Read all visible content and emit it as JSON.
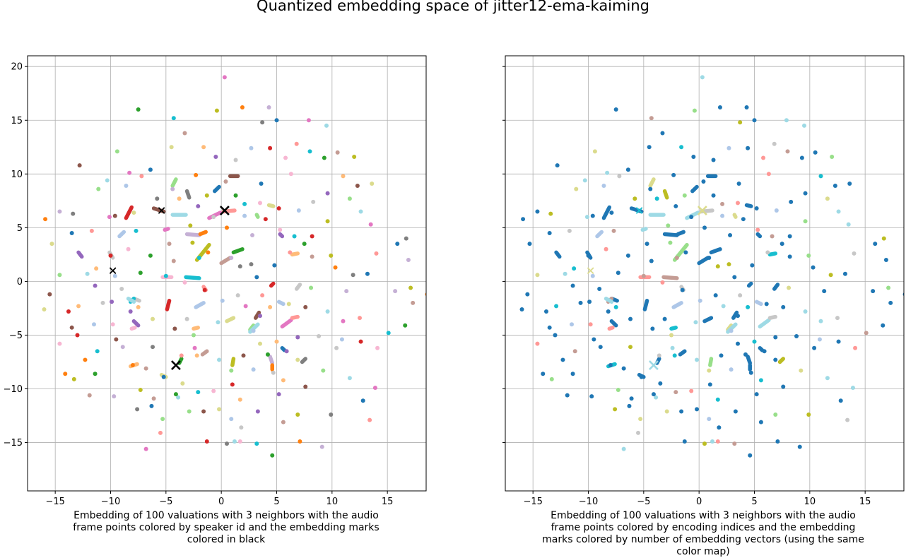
{
  "figure": {
    "title": "Quantized embedding space of jitter12-ema-kaiming"
  },
  "chart_data": [
    {
      "type": "scatter",
      "panel": "left",
      "title": "",
      "xlabel": "Embedding of 100 valuations with 3 neighbors with the audio\nframe points colored by speaker id and the embedding marks\ncolored in black",
      "ylabel": "",
      "xlim": [
        -17.5,
        18.5
      ],
      "ylim": [
        -19.5,
        21
      ],
      "xticks": [
        -15,
        -10,
        -5,
        0,
        5,
        10,
        15
      ],
      "yticks": [
        -15,
        -10,
        -5,
        0,
        5,
        10,
        15,
        20
      ],
      "grid": true,
      "points": [
        [
          -9.5,
          -5.4
        ],
        [
          -3.5,
          -9.5
        ],
        [
          -2.2,
          -6.9
        ],
        [
          5.9,
          -6.5
        ],
        [
          10.4,
          -6.2
        ],
        [
          -8.6,
          8.9
        ],
        [
          -13,
          -5
        ],
        [
          -14.6,
          -5.8
        ],
        [
          -4.3,
          15.2
        ],
        [
          -7.5,
          16
        ],
        [
          -3.3,
          13.8
        ],
        [
          -0.4,
          15.9
        ],
        [
          1.9,
          16.2
        ],
        [
          4.3,
          16.2
        ],
        [
          3.7,
          14.8
        ],
        [
          5,
          15
        ],
        [
          6.8,
          12.8
        ],
        [
          7.9,
          15
        ],
        [
          9.5,
          14.5
        ],
        [
          -9.4,
          12.1
        ],
        [
          -12.8,
          10.8
        ],
        [
          -4.5,
          12.5
        ],
        [
          -1.6,
          12.5
        ],
        [
          -0.5,
          11.6
        ],
        [
          1.3,
          11.3
        ],
        [
          2.7,
          12.4
        ],
        [
          4.4,
          12.4
        ],
        [
          5.8,
          11.5
        ],
        [
          8,
          12.1
        ],
        [
          9.3,
          11.5
        ],
        [
          10.5,
          12
        ],
        [
          12,
          11.6
        ],
        [
          -15.9,
          5.8
        ],
        [
          -14.6,
          6.5
        ],
        [
          -13.4,
          6.3
        ],
        [
          -13.5,
          4.5
        ],
        [
          -11.7,
          4.7
        ],
        [
          -10.1,
          6
        ],
        [
          -12.1,
          0.7
        ],
        [
          -14.6,
          0.6
        ],
        [
          -15.5,
          -1.2
        ],
        [
          -16,
          -2.6
        ],
        [
          -12.9,
          -2.3
        ],
        [
          -11.4,
          -0.4
        ],
        [
          -10.7,
          -2
        ],
        [
          -11.5,
          -4
        ],
        [
          -13.8,
          -2.8
        ],
        [
          -9.8,
          -4
        ],
        [
          -11.2,
          -6.5
        ],
        [
          -11.4,
          -8.6
        ],
        [
          -11.9,
          -10.6
        ],
        [
          -13.3,
          -9.1
        ],
        [
          -14.1,
          -8.6
        ],
        [
          -9.7,
          -10.7
        ],
        [
          -7.6,
          -11.9
        ],
        [
          -6.3,
          -11.6
        ],
        [
          -5.5,
          -14.1
        ],
        [
          -6.8,
          -15.6
        ],
        [
          -3.9,
          -10.8
        ],
        [
          -2.9,
          -12.1
        ],
        [
          -1.6,
          -12.1
        ],
        [
          -0.2,
          -11.9
        ],
        [
          1.7,
          -11
        ],
        [
          3.3,
          -12.1
        ],
        [
          1.8,
          -13.6
        ],
        [
          0.9,
          -12.8
        ],
        [
          -1.3,
          -14.9
        ],
        [
          1.7,
          -14.9
        ],
        [
          3.2,
          -15.1
        ],
        [
          4.6,
          -16.2
        ],
        [
          5.6,
          -13.1
        ],
        [
          6.9,
          -12.4
        ],
        [
          7.1,
          -14.9
        ],
        [
          9.1,
          -15.4
        ],
        [
          9.9,
          -12.4
        ],
        [
          12.8,
          -11.1
        ],
        [
          13.4,
          -12.9
        ],
        [
          13.9,
          -9.9
        ],
        [
          11.6,
          -9
        ],
        [
          9.2,
          -8.3
        ],
        [
          7.6,
          -9.8
        ],
        [
          6.9,
          -7.3
        ],
        [
          5.6,
          -9.2
        ],
        [
          5.2,
          -10.5
        ],
        [
          4.7,
          -8.5
        ],
        [
          2.9,
          -8.2
        ],
        [
          1,
          -9.6
        ],
        [
          -0.7,
          -10.2
        ],
        [
          -2.1,
          -10.3
        ],
        [
          -4.1,
          -10.5
        ],
        [
          -6.1,
          -10.9
        ],
        [
          -7.3,
          -10.1
        ],
        [
          -8,
          -7.8
        ],
        [
          -8.9,
          -6.1
        ],
        [
          -6.2,
          -6.1
        ],
        [
          -5.2,
          -8.9
        ],
        [
          -3.6,
          -6.9
        ],
        [
          -2.4,
          -6.2
        ],
        [
          -0.2,
          -7.3
        ],
        [
          0.9,
          -8.3
        ],
        [
          2,
          -6.9
        ],
        [
          3.5,
          -5.8
        ],
        [
          5,
          -5.6
        ],
        [
          6.9,
          -5.2
        ],
        [
          8.8,
          -5.1
        ],
        [
          10.9,
          -5.4
        ],
        [
          12.6,
          -5.6
        ],
        [
          14.1,
          -6.2
        ],
        [
          15.1,
          -4.8
        ],
        [
          16.6,
          -4.1
        ],
        [
          17.3,
          -2
        ],
        [
          17.1,
          -0.6
        ],
        [
          18.6,
          -1.2
        ],
        [
          16.9,
          2
        ],
        [
          16.7,
          4
        ],
        [
          15.9,
          3.5
        ],
        [
          14,
          2.6
        ],
        [
          13.5,
          5.3
        ],
        [
          12.6,
          6.5
        ],
        [
          11.6,
          7.7
        ],
        [
          12.3,
          8.9
        ],
        [
          13.6,
          9.1
        ],
        [
          11,
          9.8
        ],
        [
          9.6,
          8.2
        ],
        [
          8.3,
          7.4
        ],
        [
          7,
          6.6
        ],
        [
          5.2,
          6.8
        ],
        [
          3.5,
          7.3
        ],
        [
          2.1,
          7.2
        ],
        [
          1.3,
          8
        ],
        [
          0.4,
          9.3
        ],
        [
          -1.3,
          8
        ],
        [
          -2.3,
          9.9
        ],
        [
          -4.4,
          8.6
        ],
        [
          -5.8,
          7.7
        ],
        [
          -6.4,
          10.4
        ],
        [
          -7.2,
          9.8
        ],
        [
          -8.3,
          10.1
        ],
        [
          -10.3,
          9.4
        ],
        [
          -11.1,
          8.6
        ],
        [
          -9.6,
          6.1
        ],
        [
          -7.9,
          6.4
        ],
        [
          -3.8,
          7.7
        ],
        [
          -2.1,
          7
        ],
        [
          -0.7,
          6
        ],
        [
          2.1,
          6.1
        ],
        [
          4,
          5.8
        ],
        [
          5.3,
          4.8
        ],
        [
          6.6,
          4.2
        ],
        [
          7.5,
          3.5
        ],
        [
          8.2,
          2.3
        ],
        [
          9.9,
          2.4
        ],
        [
          10.3,
          1.3
        ],
        [
          11.3,
          -0.9
        ],
        [
          11.9,
          0.6
        ],
        [
          13.2,
          0.7
        ],
        [
          12.5,
          -3.4
        ],
        [
          11,
          -3.7
        ],
        [
          9.6,
          -2.8
        ],
        [
          8.1,
          -0.6
        ],
        [
          7.6,
          -2.4
        ],
        [
          6.1,
          -2.1
        ],
        [
          4.4,
          -2.4
        ],
        [
          3.5,
          -3.2
        ],
        [
          1.5,
          -1.3
        ],
        [
          0.1,
          -1.8
        ],
        [
          -1.5,
          -0.8
        ],
        [
          -3.3,
          -0.1
        ],
        [
          -5,
          0.5
        ],
        [
          -6.4,
          2.4
        ],
        [
          -4.7,
          3.5
        ],
        [
          -2.6,
          3.6
        ],
        [
          -1.2,
          2.7
        ],
        [
          0.9,
          2.2
        ],
        [
          1.7,
          1.4
        ],
        [
          3.2,
          0.4
        ],
        [
          3.7,
          -1.3
        ],
        [
          2.2,
          -2.3
        ],
        [
          -0.3,
          -3.8
        ],
        [
          -2.5,
          -5
        ],
        [
          -4.2,
          -4.4
        ],
        [
          -6.2,
          -3.5
        ],
        [
          -7.5,
          -2.4
        ],
        [
          -9.9,
          -1.9
        ],
        [
          -9,
          -0.7
        ],
        [
          -9.6,
          0.5
        ],
        [
          -10,
          2.4
        ],
        [
          -8.4,
          3
        ],
        [
          -7.7,
          4.7
        ],
        [
          -7.3,
          0.8
        ],
        [
          -4.3,
          1.9
        ],
        [
          -2.8,
          5.2
        ],
        [
          0.5,
          5
        ],
        [
          2.8,
          4.3
        ],
        [
          2.7,
          1.6
        ],
        [
          4.8,
          1.5
        ],
        [
          6.2,
          2.7
        ],
        [
          0.3,
          19
        ],
        [
          1.2,
          -14.9
        ],
        [
          -5.3,
          -12.8
        ],
        [
          -13.5,
          -4.3
        ],
        [
          -15.3,
          3.5
        ],
        [
          -11.3,
          1.2
        ],
        [
          -8.2,
          -2.8
        ],
        [
          -3.1,
          -3.5
        ],
        [
          2.9,
          -4.6
        ],
        [
          8.2,
          4.2
        ],
        [
          6.3,
          10
        ],
        [
          -2,
          2.2
        ],
        [
          4.2,
          -6.8
        ],
        [
          -6.8,
          -8.1
        ],
        [
          9.6,
          5.6
        ],
        [
          -12.3,
          -7.3
        ],
        [
          15.7,
          -0.9
        ],
        [
          0.5,
          -15.1
        ],
        [
          3.6,
          9.1
        ]
      ],
      "segments": [
        [
          -8.6,
          5.9,
          -8.1,
          6.9
        ],
        [
          -9.2,
          4.2,
          -8.8,
          4.6
        ],
        [
          -9.8,
          2.2,
          -10.1,
          2.7
        ],
        [
          -12.6,
          2.3,
          -12.9,
          2.7
        ],
        [
          -7.6,
          -7.7,
          -8.2,
          -7.9
        ],
        [
          -5,
          -8.9,
          -5.4,
          -8.7
        ],
        [
          -6.1,
          6.8,
          -5.2,
          6.5
        ],
        [
          -4.1,
          9.5,
          -4.4,
          8.9
        ],
        [
          -4.4,
          6.2,
          -3.2,
          6.2
        ],
        [
          -1.1,
          5.9,
          -0.1,
          6.4
        ],
        [
          0.2,
          6.5,
          1.2,
          6.6
        ],
        [
          -0.6,
          8.4,
          -0.2,
          8.8
        ],
        [
          -3.1,
          8.4,
          -2.9,
          7.8
        ],
        [
          -3.1,
          4.4,
          -2,
          4.3
        ],
        [
          -1.9,
          4.4,
          -1.4,
          4.6
        ],
        [
          -2.2,
          2,
          -1.1,
          3.4
        ],
        [
          0,
          1.7,
          0.8,
          2.2
        ],
        [
          1.1,
          2.7,
          1.9,
          3
        ],
        [
          -3.2,
          0.4,
          -2,
          0.3
        ],
        [
          -5.3,
          0.4,
          -4.5,
          0.4
        ],
        [
          -4.9,
          -2.6,
          -4.7,
          -1.8
        ],
        [
          -2.3,
          -2.4,
          -1.6,
          -2
        ],
        [
          -7.4,
          -1.8,
          -7.9,
          -1.6
        ],
        [
          -7.5,
          -4.1,
          -7.9,
          -3.7
        ],
        [
          -2.5,
          -4.4,
          -2.1,
          -4.3
        ],
        [
          0.5,
          -3.7,
          1.1,
          -3.4
        ],
        [
          3.1,
          -3.4,
          3.4,
          -2.9
        ],
        [
          2.6,
          -4.5,
          2.9,
          -4.1
        ],
        [
          2.6,
          -4.7,
          3.3,
          -4
        ],
        [
          5.5,
          -4.2,
          6.3,
          -3.6
        ],
        [
          6.4,
          -3.4,
          6.9,
          -3.3
        ],
        [
          5.5,
          -6.2,
          5.7,
          -6.4
        ],
        [
          7.3,
          -7.5,
          7.6,
          -7.2
        ],
        [
          4.6,
          -7.6,
          4.4,
          -7
        ],
        [
          4.6,
          -8.2,
          4.6,
          -7.8
        ],
        [
          1,
          -7.8,
          1.1,
          -7.2
        ],
        [
          -1.7,
          -6.8,
          -1.3,
          -6.5
        ],
        [
          -3.8,
          -7.6,
          -3.6,
          -7.2
        ],
        [
          -8.2,
          -1.9,
          -7.9,
          -1.6
        ],
        [
          -8.1,
          -4.4,
          -7.8,
          -4.3
        ],
        [
          4.5,
          -0.4,
          4.7,
          -0.2
        ],
        [
          5.2,
          -1.9,
          5.6,
          -2.1
        ],
        [
          7.1,
          -0.3,
          6.8,
          -0.7
        ],
        [
          5.3,
          4.4,
          5.5,
          4.2
        ],
        [
          6.4,
          2.5,
          6.9,
          2.6
        ],
        [
          4.3,
          7.1,
          4.7,
          7
        ],
        [
          0.8,
          9.8,
          1.5,
          9.8
        ],
        [
          3.2,
          6.2,
          3.3,
          6
        ],
        [
          -8.4,
          -1.6,
          -7.9,
          -1.9
        ],
        [
          -4.8,
          4.9,
          -5.1,
          4.8
        ],
        [
          -1.4,
          -0.8,
          -1.6,
          -0.5
        ]
      ],
      "marks": [
        {
          "x": -5.4,
          "y": 6.6,
          "color": "#000000",
          "size": "small"
        },
        {
          "x": 0.3,
          "y": 6.6,
          "color": "#000000",
          "size": "large"
        },
        {
          "x": -9.8,
          "y": 1.0,
          "color": "#000000",
          "size": "small"
        },
        {
          "x": -4.1,
          "y": -7.8,
          "color": "#000000",
          "size": "large"
        }
      ],
      "palette": [
        "#1f77b4",
        "#ff7f0e",
        "#2ca02c",
        "#d62728",
        "#9467bd",
        "#8c564b",
        "#e377c2",
        "#7f7f7f",
        "#bcbd22",
        "#17becf",
        "#aec7e8",
        "#ffbb78",
        "#98df8a",
        "#ff9896",
        "#c5b0d5",
        "#c49c94",
        "#f7b6d2",
        "#c7c7c7",
        "#dbdb8d",
        "#9edae5"
      ]
    },
    {
      "type": "scatter",
      "panel": "right",
      "title": "",
      "xlabel": "Embedding of 100 valuations with 3 neighbors with the audio\nframe points colored by encoding indices and the embedding\nmarks colored by number of embedding vectors (using the same\ncolor map)",
      "ylabel": "",
      "xlim": [
        -17.5,
        18.5
      ],
      "ylim": [
        -19.5,
        21
      ],
      "xticks": [
        -15,
        -10,
        -5,
        0,
        5,
        10,
        15
      ],
      "yticks": [
        -15,
        -10,
        -5,
        0,
        5,
        10,
        15,
        20
      ],
      "grid": true,
      "marks": [
        {
          "x": -5.4,
          "y": 6.6,
          "color": "#17becf",
          "size": "small"
        },
        {
          "x": 0.3,
          "y": 6.6,
          "color": "#dbdb8d",
          "size": "large"
        },
        {
          "x": -9.8,
          "y": 1.0,
          "color": "#dbdb8d",
          "size": "small"
        },
        {
          "x": -4.1,
          "y": -7.8,
          "color": "#9edae5",
          "size": "large"
        }
      ],
      "palette": [
        "#1f77b4",
        "#1f77b4",
        "#1f77b4",
        "#1f77b4",
        "#1f77b4",
        "#1f77b4",
        "#9edae5",
        "#bcbd22",
        "#98df8a",
        "#c49c94",
        "#aec7e8",
        "#17becf",
        "#dbdb8d",
        "#c7c7c7",
        "#1f77b4",
        "#1f77b4",
        "#ff9896",
        "#1f77b4",
        "#1f77b4",
        "#9edae5"
      ]
    }
  ]
}
